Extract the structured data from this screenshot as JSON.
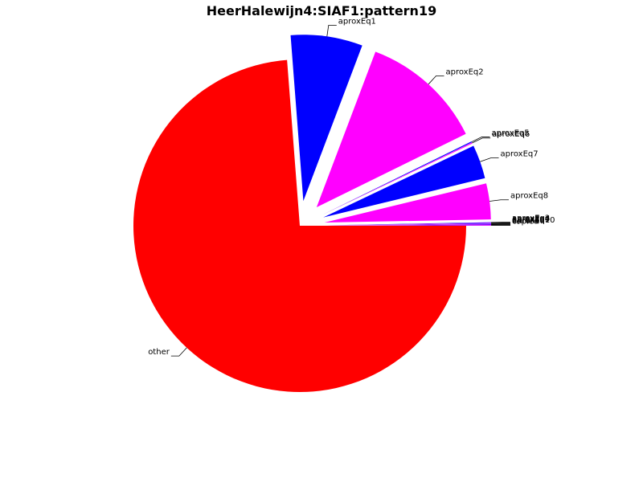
{
  "chart_data": {
    "type": "pie",
    "title": "HeerHalewijn4:SIAF1:pattern19",
    "slices": [
      {
        "label": "other",
        "value": 74.0,
        "color": "#ff0000",
        "exploded": false
      },
      {
        "label": "aproxEq1",
        "value": 7.0,
        "color": "#0000ff",
        "exploded": true
      },
      {
        "label": "aproxEq2",
        "value": 12.0,
        "color": "#ff00ff",
        "exploded": true
      },
      {
        "label": "aproxEq5",
        "value": 0.1,
        "color": "#0000ff",
        "exploded": true
      },
      {
        "label": "aproxEq6",
        "value": 0.1,
        "color": "#ff00ff",
        "exploded": true
      },
      {
        "label": "aproxEq7",
        "value": 3.3,
        "color": "#0000ff",
        "exploded": true
      },
      {
        "label": "aproxEq8",
        "value": 3.5,
        "color": "#ff00ff",
        "exploded": true
      },
      {
        "label": "aproxEq3",
        "value": 0.05,
        "color": "#0000ff",
        "exploded": true
      },
      {
        "label": "aproxEq4",
        "value": 0.05,
        "color": "#ff00ff",
        "exploded": true
      },
      {
        "label": "aproxEq9",
        "value": 0.05,
        "color": "#0000ff",
        "exploded": true
      },
      {
        "label": "aproxEq10",
        "value": 0.05,
        "color": "#ff00ff",
        "exploded": true
      },
      {
        "label": "unrolled",
        "value": 0.05,
        "color": "#0000ff",
        "exploded": true
      },
      {
        "label": "copied",
        "value": 0.05,
        "color": "#ff00ff",
        "exploded": true
      }
    ]
  }
}
